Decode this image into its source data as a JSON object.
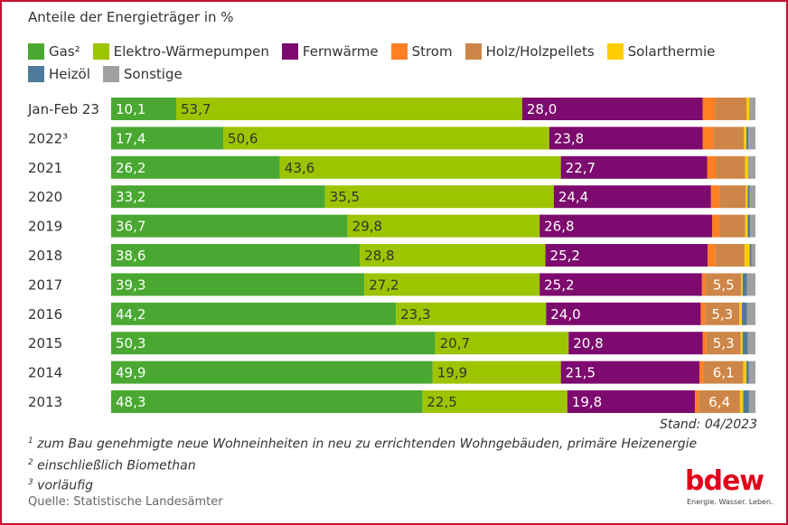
{
  "chart_data": {
    "type": "bar",
    "orientation": "horizontal",
    "stacked": "percent",
    "title": "Anteile der Energieträger in %",
    "categories": [
      "Jan-Feb 23",
      "2022³",
      "2021",
      "2020",
      "2019",
      "2018",
      "2017",
      "2016",
      "2015",
      "2014",
      "2013"
    ],
    "series": [
      {
        "name": "Gas²",
        "color": "#4aa832",
        "values": [
          10.1,
          17.4,
          26.2,
          33.2,
          36.7,
          38.6,
          39.3,
          44.2,
          50.3,
          49.9,
          48.3
        ],
        "labeled": true,
        "label_color": "#ffffff"
      },
      {
        "name": "Elektro-Wärmepumpen",
        "color": "#9dc400",
        "values": [
          53.7,
          50.6,
          43.6,
          35.5,
          29.8,
          28.8,
          27.2,
          23.3,
          20.7,
          19.9,
          22.5
        ],
        "labeled": true,
        "label_color": "#333333"
      },
      {
        "name": "Fernwärme",
        "color": "#7d0a6e",
        "values": [
          28.0,
          23.8,
          22.7,
          24.4,
          26.8,
          25.2,
          25.2,
          24.0,
          20.8,
          21.5,
          19.8
        ],
        "labeled": true,
        "label_color": "#ffffff"
      },
      {
        "name": "Strom",
        "color": "#ff7f24",
        "values": [
          1.9,
          1.7,
          1.4,
          1.3,
          1.1,
          1.2,
          0.6,
          0.7,
          0.6,
          0.7,
          0.6
        ]
      },
      {
        "name": "Holz/Holzpellets",
        "color": "#cd8648",
        "values": [
          4.9,
          4.7,
          4.5,
          4.1,
          4.0,
          4.5,
          5.5,
          5.3,
          5.3,
          6.1,
          6.4
        ],
        "labeled_from": 6,
        "label_color": "#ffffff"
      },
      {
        "name": "Solarthermie",
        "color": "#ffcc00",
        "values": [
          0.5,
          0.4,
          0.5,
          0.3,
          0.4,
          0.8,
          0.2,
          0.4,
          0.3,
          0.5,
          0.5
        ]
      },
      {
        "name": "Heizöl",
        "color": "#4f7a9a",
        "values": [
          0.1,
          0.3,
          0.1,
          0.3,
          0.4,
          0.3,
          0.7,
          0.8,
          0.8,
          0.4,
          0.9
        ]
      },
      {
        "name": "Sonstige",
        "color": "#a0a0a0",
        "values": [
          0.8,
          1.1,
          1.0,
          0.9,
          0.8,
          0.6,
          1.3,
          1.3,
          1.2,
          1.0,
          1.0
        ]
      }
    ],
    "xlim": [
      0,
      100
    ],
    "grid": false,
    "legend": "top"
  },
  "stand": "Stand: 04/2023",
  "footnotes": [
    {
      "mark": "1",
      "text": " zum Bau genehmigte neue Wohneinheiten in neu zu errichtenden Wohngebäuden, primäre Heizenergie"
    },
    {
      "mark": "2",
      "text": " einschließlich Biomethan"
    },
    {
      "mark": "3",
      "text": " vorläufig"
    }
  ],
  "source": "Quelle: Statistische Landesämter",
  "logo": {
    "text": "bdew",
    "slogan": "Energie. Wasser. Leben.",
    "color": "#e2001a"
  },
  "frame_color": "#c8102e"
}
